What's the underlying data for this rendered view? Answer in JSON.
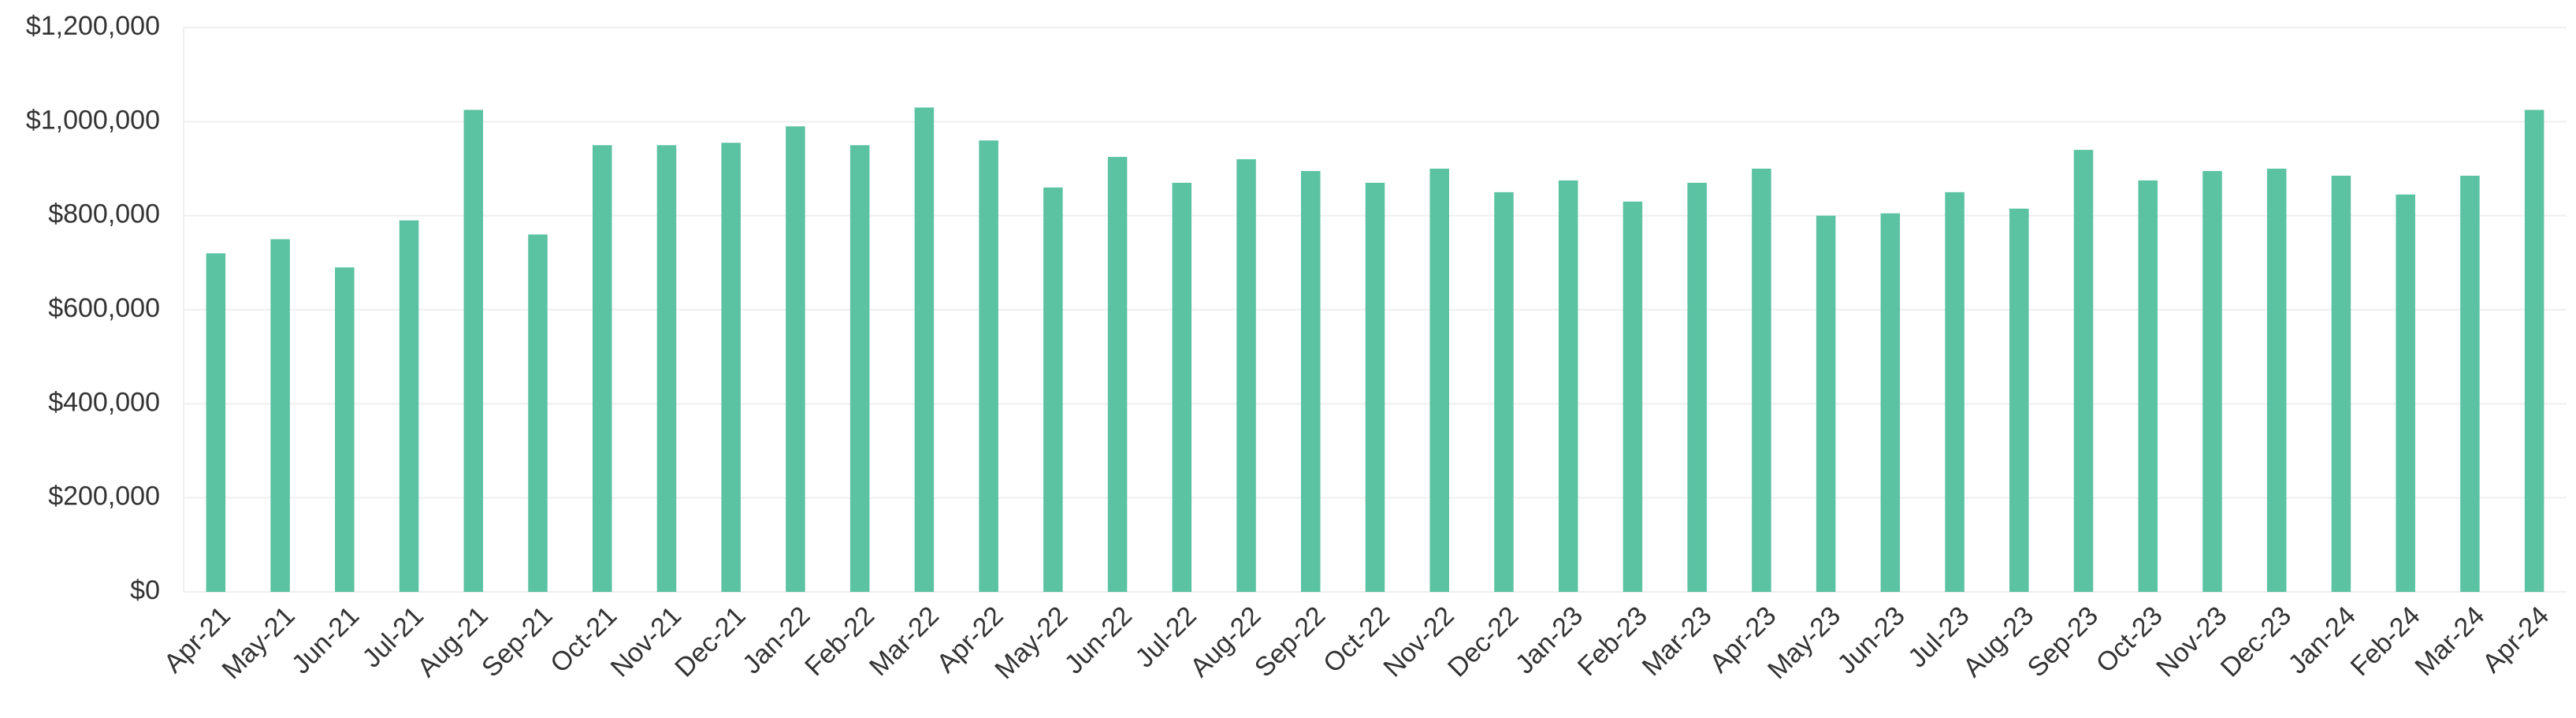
{
  "chart_data": {
    "type": "bar",
    "categories": [
      "Apr-21",
      "May-21",
      "Jun-21",
      "Jul-21",
      "Aug-21",
      "Sep-21",
      "Oct-21",
      "Nov-21",
      "Dec-21",
      "Jan-22",
      "Feb-22",
      "Mar-22",
      "Apr-22",
      "May-22",
      "Jun-22",
      "Jul-22",
      "Aug-22",
      "Sep-22",
      "Oct-22",
      "Nov-22",
      "Dec-22",
      "Jan-23",
      "Feb-23",
      "Mar-23",
      "Apr-23",
      "May-23",
      "Jun-23",
      "Jul-23",
      "Aug-23",
      "Sep-23",
      "Oct-23",
      "Nov-23",
      "Dec-23",
      "Jan-24",
      "Feb-24",
      "Mar-24",
      "Apr-24"
    ],
    "values": [
      720000,
      750000,
      690000,
      790000,
      1025000,
      760000,
      950000,
      950000,
      955000,
      990000,
      950000,
      1030000,
      960000,
      860000,
      925000,
      870000,
      920000,
      895000,
      870000,
      900000,
      850000,
      875000,
      830000,
      870000,
      900000,
      800000,
      805000,
      850000,
      815000,
      940000,
      875000,
      895000,
      900000,
      885000,
      845000,
      885000,
      1025000
    ],
    "color": "#5bc2a2",
    "ylim": [
      0,
      1200000
    ],
    "yticks": [
      {
        "value": 0,
        "label": "$0"
      },
      {
        "value": 200000,
        "label": "$200,000"
      },
      {
        "value": 400000,
        "label": "$400,000"
      },
      {
        "value": 600000,
        "label": "$600,000"
      },
      {
        "value": 800000,
        "label": "$800,000"
      },
      {
        "value": 1000000,
        "label": "$1,000,000"
      },
      {
        "value": 1200000,
        "label": "$1,200,000"
      }
    ],
    "grid": true
  }
}
